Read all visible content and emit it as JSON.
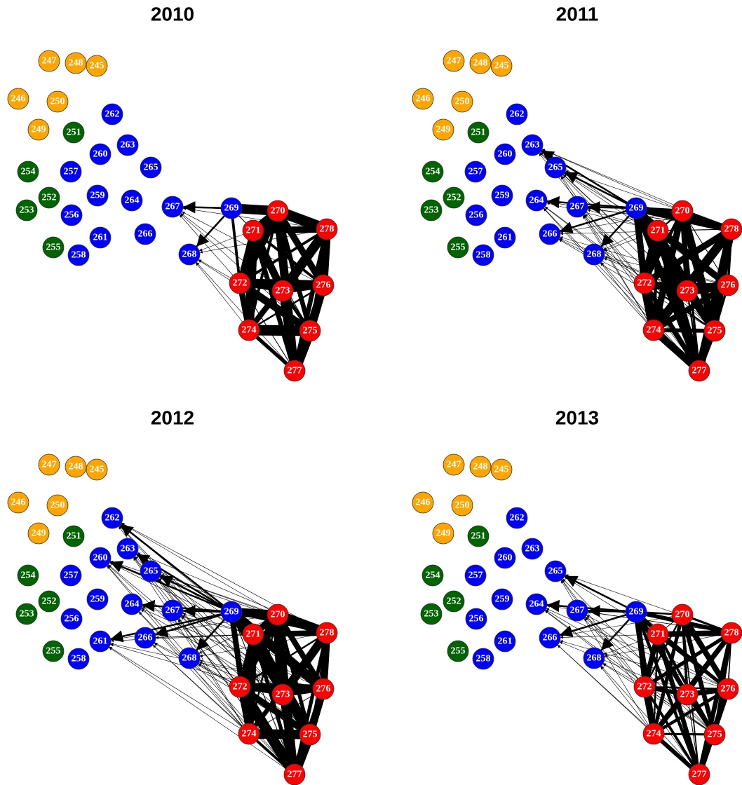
{
  "panels": [
    {
      "title": "2010"
    },
    {
      "title": "2011"
    },
    {
      "title": "2012"
    },
    {
      "title": "2013"
    }
  ],
  "nodes": [
    {
      "label": "245",
      "color": "#FFA500"
    },
    {
      "label": "246",
      "color": "#FFA500"
    },
    {
      "label": "247",
      "color": "#FFA500"
    },
    {
      "label": "248",
      "color": "#FFA500"
    },
    {
      "label": "249",
      "color": "#FFA500"
    },
    {
      "label": "250",
      "color": "#FFA500"
    },
    {
      "label": "251",
      "color": "#006400"
    },
    {
      "label": "252",
      "color": "#006400"
    },
    {
      "label": "253",
      "color": "#006400"
    },
    {
      "label": "254",
      "color": "#006400"
    },
    {
      "label": "255",
      "color": "#006400"
    },
    {
      "label": "256",
      "color": "#0000FF"
    },
    {
      "label": "257",
      "color": "#0000FF"
    },
    {
      "label": "258",
      "color": "#0000FF"
    },
    {
      "label": "259",
      "color": "#0000FF"
    },
    {
      "label": "260",
      "color": "#0000FF"
    },
    {
      "label": "261",
      "color": "#0000FF"
    },
    {
      "label": "262",
      "color": "#0000FF"
    },
    {
      "label": "263",
      "color": "#0000FF"
    },
    {
      "label": "264",
      "color": "#0000FF"
    },
    {
      "label": "265",
      "color": "#0000FF"
    },
    {
      "label": "266",
      "color": "#0000FF"
    },
    {
      "label": "267",
      "color": "#0000FF"
    },
    {
      "label": "268",
      "color": "#0000FF"
    },
    {
      "label": "269",
      "color": "#0000FF"
    },
    {
      "label": "270",
      "color": "#FF0000"
    },
    {
      "label": "271",
      "color": "#FF0000"
    },
    {
      "label": "272",
      "color": "#FF0000"
    },
    {
      "label": "273",
      "color": "#FF0000"
    },
    {
      "label": "274",
      "color": "#FF0000"
    },
    {
      "label": "275",
      "color": "#FF0000"
    },
    {
      "label": "276",
      "color": "#FF0000"
    },
    {
      "label": "277",
      "color": "#FF0000"
    },
    {
      "label": "278",
      "color": "#FF0000"
    }
  ]
}
